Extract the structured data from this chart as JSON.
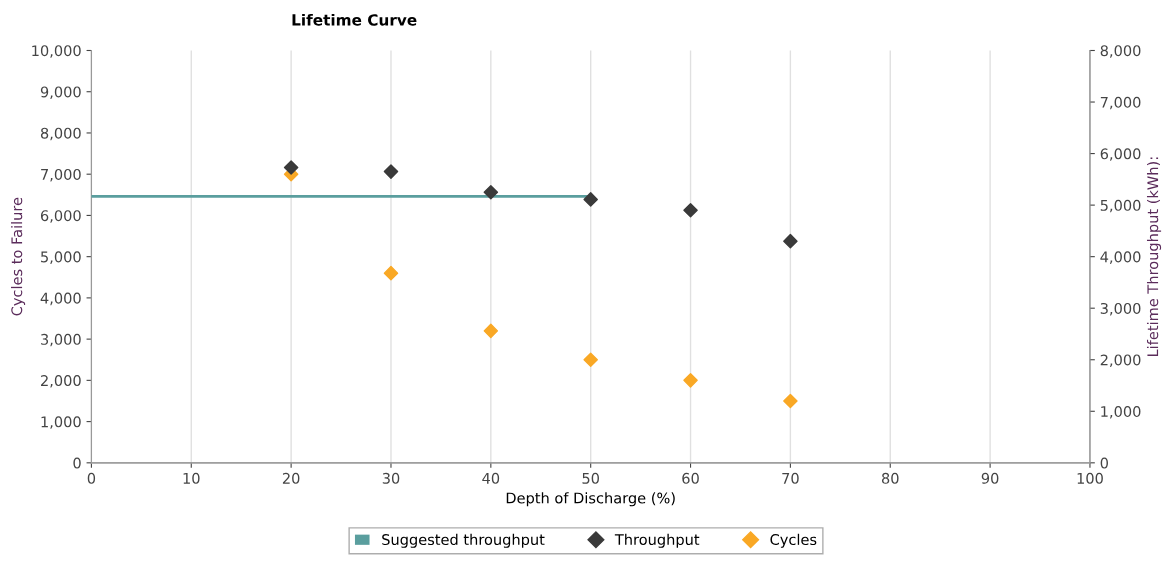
{
  "chart_data": {
    "type": "scatter",
    "title": "Lifetime Curve",
    "xlabel": "Depth of Discharge (%)",
    "ylabel": "Cycles to Failure",
    "y2label": "Lifetime Throughput (kWh):",
    "x": [
      20,
      30,
      40,
      50,
      60,
      70
    ],
    "series": [
      {
        "name": "Suggested throughput",
        "type": "line",
        "color": "#5a9e9e",
        "x": [
          0,
          50
        ],
        "values": [
          5170,
          5170
        ],
        "axis": "y2",
        "marker": "none",
        "line_style": "solid"
      },
      {
        "name": "Throughput",
        "color": "#3a3a3a",
        "values": [
          5730,
          5650,
          5250,
          5110,
          4900,
          4300
        ],
        "axis": "y2",
        "marker": "diamond"
      },
      {
        "name": "Cycles",
        "color": "#f9a825",
        "values": [
          7000,
          4600,
          3200,
          2500,
          2000,
          1500
        ],
        "marker": "diamond"
      }
    ],
    "xlim": [
      0,
      100
    ],
    "xticks": [
      0,
      10,
      20,
      30,
      40,
      50,
      60,
      70,
      80,
      90,
      100
    ],
    "ylim": [
      0,
      10000
    ],
    "yticks": [
      {
        "value": 0,
        "label": "0"
      },
      {
        "value": 1000,
        "label": "1,000"
      },
      {
        "value": 2000,
        "label": "2,000"
      },
      {
        "value": 3000,
        "label": "3,000"
      },
      {
        "value": 4000,
        "label": "4,000"
      },
      {
        "value": 5000,
        "label": "5,000"
      },
      {
        "value": 6000,
        "label": "6,000"
      },
      {
        "value": 7000,
        "label": "7,000"
      },
      {
        "value": 8000,
        "label": "8,000"
      },
      {
        "value": 9000,
        "label": "9,000"
      },
      {
        "value": 10000,
        "label": "10,000"
      }
    ],
    "y2lim": [
      0,
      8000
    ],
    "y2ticks": [
      {
        "value": 0,
        "label": "0"
      },
      {
        "value": 1000,
        "label": "1,000"
      },
      {
        "value": 2000,
        "label": "2,000"
      },
      {
        "value": 3000,
        "label": "3,000"
      },
      {
        "value": 4000,
        "label": "4,000"
      },
      {
        "value": 5000,
        "label": "5,000"
      },
      {
        "value": 6000,
        "label": "6,000"
      },
      {
        "value": 7000,
        "label": "7,000"
      },
      {
        "value": 8000,
        "label": "8,000"
      }
    ],
    "grid": "x",
    "legend": "bottom"
  }
}
